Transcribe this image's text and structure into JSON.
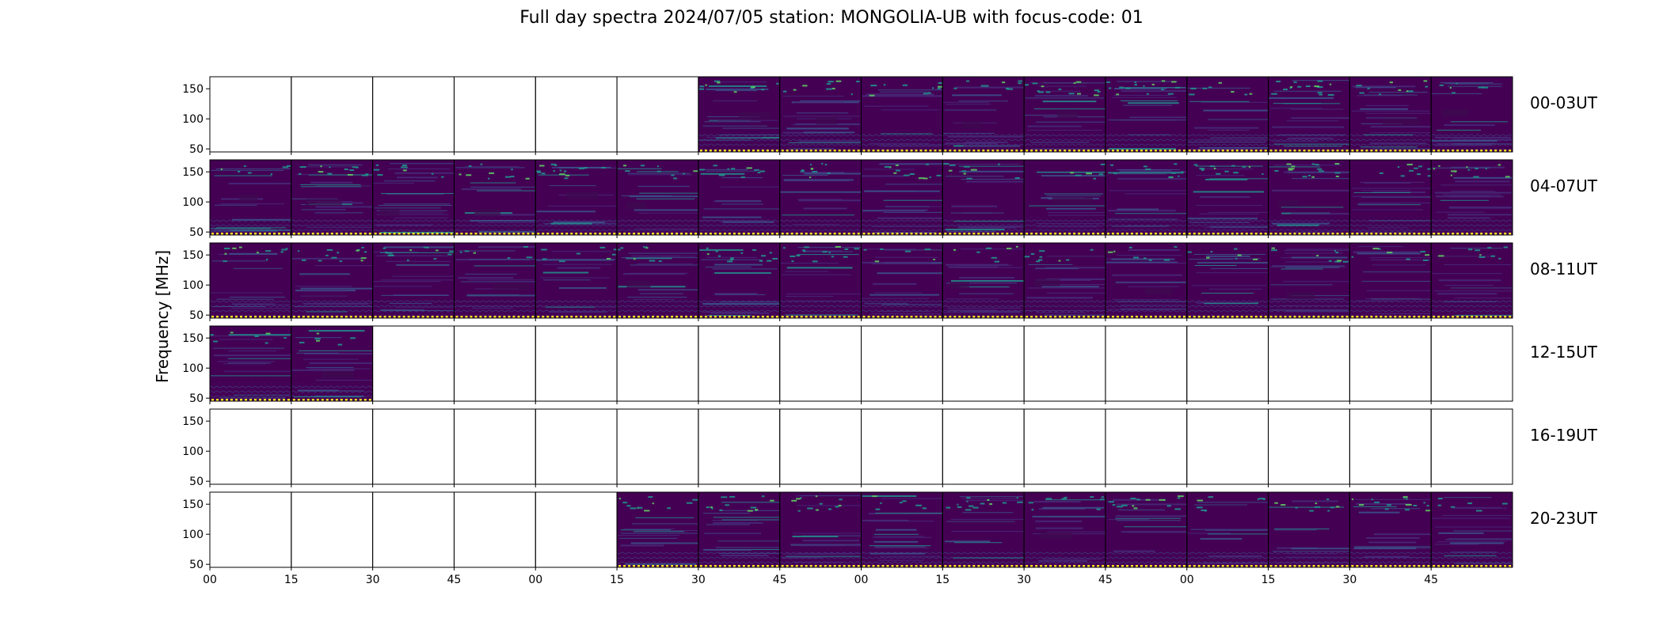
{
  "chart_data": {
    "type": "heatmap",
    "title": "Full day spectra 2024/07/05 station: MONGOLIA-UB with focus-code: 01",
    "ylabel": "Frequency [MHz]",
    "xlabel": "",
    "y_ticks": [
      50,
      100,
      150
    ],
    "ylim": [
      45,
      170
    ],
    "x_tick_labels": [
      "00",
      "15",
      "30",
      "45",
      "00",
      "15",
      "30",
      "45",
      "00",
      "15",
      "30",
      "45",
      "00",
      "15",
      "30",
      "45"
    ],
    "panels_per_row": 16,
    "minutes_per_panel": 15,
    "colormap": {
      "background": "#440154",
      "mid": "#3b528b",
      "bright": "#21918c",
      "highlight": "#5ec962",
      "marker": "#fde725"
    },
    "rows": [
      {
        "label": "00-03UT",
        "data_panels": [
          6,
          7,
          8,
          9,
          10,
          11,
          12,
          13,
          14,
          15
        ]
      },
      {
        "label": "04-07UT",
        "data_panels": [
          0,
          1,
          2,
          3,
          4,
          5,
          6,
          7,
          8,
          9,
          10,
          11,
          12,
          13,
          14,
          15
        ]
      },
      {
        "label": "08-11UT",
        "data_panels": [
          0,
          1,
          2,
          3,
          4,
          5,
          6,
          7,
          8,
          9,
          10,
          11,
          12,
          13,
          14,
          15
        ]
      },
      {
        "label": "12-15UT",
        "data_panels": [
          0,
          1
        ]
      },
      {
        "label": "16-19UT",
        "data_panels": []
      },
      {
        "label": "20-23UT",
        "data_panels": [
          5,
          6,
          7,
          8,
          9,
          10,
          11,
          12,
          13,
          14,
          15
        ]
      }
    ]
  }
}
